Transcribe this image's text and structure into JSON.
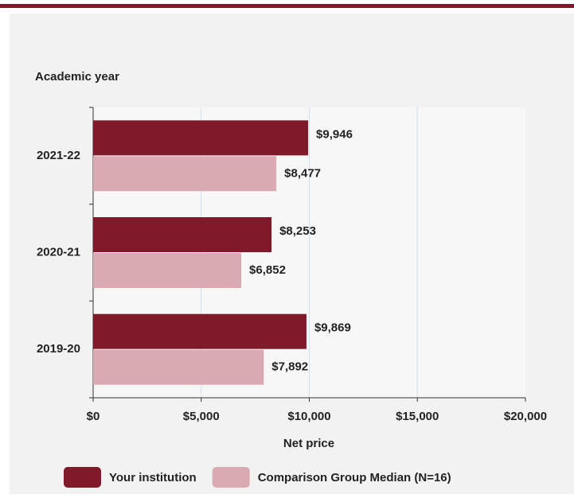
{
  "chart_data": {
    "type": "bar",
    "orientation": "horizontal",
    "y_axis_label": "Academic year",
    "x_axis_label": "Net price",
    "categories": [
      "2021-22",
      "2020-21",
      "2019-20"
    ],
    "series": [
      {
        "name": "Your institution",
        "color": "#7f1a2b",
        "values": [
          9946,
          8253,
          9869
        ],
        "value_labels": [
          "$9,946",
          "$8,253",
          "$9,869"
        ]
      },
      {
        "name": "Comparison Group Median (N=16)",
        "color": "#d9aab1",
        "values": [
          8477,
          6852,
          7892
        ],
        "value_labels": [
          "$8,477",
          "$6,852",
          "$7,892"
        ]
      }
    ],
    "xlim": [
      0,
      20000
    ],
    "xticks": [
      {
        "value": 0,
        "label": "$0"
      },
      {
        "value": 5000,
        "label": "$5,000"
      },
      {
        "value": 10000,
        "label": "$10,000"
      },
      {
        "value": 15000,
        "label": "$15,000"
      },
      {
        "value": 20000,
        "label": "$20,000"
      }
    ],
    "grid": true,
    "legend": "bottom"
  }
}
